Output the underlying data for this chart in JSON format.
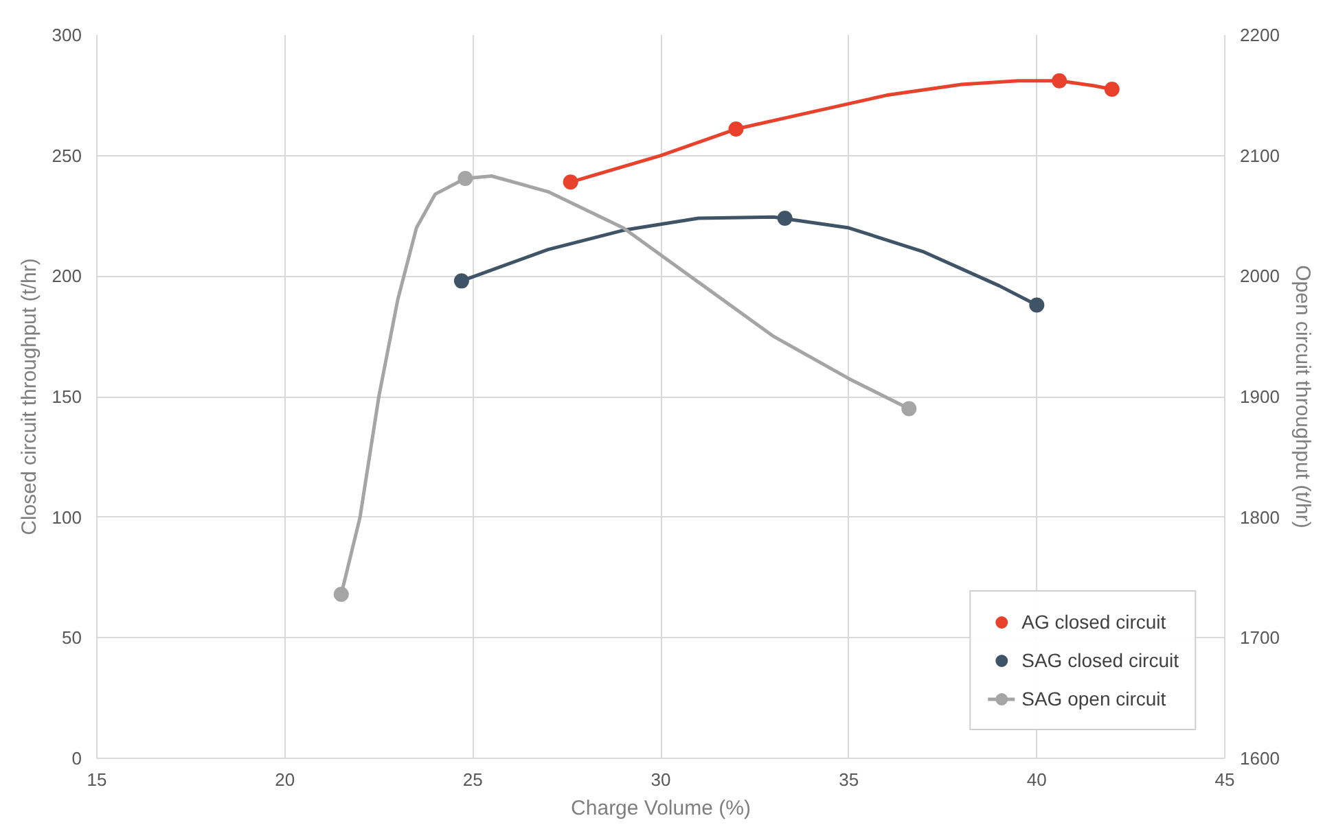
{
  "chart_data": {
    "type": "scatter",
    "xlabel": "Charge Volume (%)",
    "ylabel": "Closed circuit throughput (t/hr)",
    "y2label": "Open circuit throughput (t/hr)",
    "xlim": [
      15,
      45
    ],
    "xticks": [
      15,
      20,
      25,
      30,
      35,
      40,
      45
    ],
    "ylim": [
      0,
      300
    ],
    "yticks": [
      0,
      50,
      100,
      150,
      200,
      250,
      300
    ],
    "y2lim": [
      1600,
      2200
    ],
    "y2ticks": [
      1600,
      1700,
      1800,
      1900,
      2000,
      2100,
      2200
    ],
    "grid": true,
    "legend": "bottom right",
    "marker": "circle",
    "series": [
      {
        "type": "line",
        "color": "#e8412c",
        "marker": "none",
        "x": [
          27.6,
          30,
          32,
          34,
          36,
          38,
          39.5,
          40.6,
          41.5,
          42
        ],
        "values": [
          239,
          250,
          261,
          268,
          275,
          279.5,
          281,
          281,
          279,
          277.5
        ]
      },
      {
        "type": "line",
        "color": "#3f5467",
        "marker": "none",
        "x": [
          24.7,
          27,
          29,
          31,
          33,
          35,
          37,
          39,
          40
        ],
        "values": [
          198,
          211,
          219,
          224,
          224.5,
          220,
          210,
          196,
          188
        ]
      },
      {
        "name": "AG closed circuit",
        "color": "#e8412c",
        "x": [
          27.6,
          32,
          40.6,
          42
        ],
        "values": [
          239,
          261,
          281,
          277.5
        ]
      },
      {
        "name": "SAG closed circuit",
        "color": "#3f5467",
        "x": [
          24.7,
          33.3,
          40
        ],
        "values": [
          198,
          224,
          188
        ]
      },
      {
        "name": "SAG open circuit",
        "color": "#a5a5a5",
        "axis": "y2",
        "x": [
          21.5,
          24.8,
          36.6
        ],
        "values": [
          1736,
          2081,
          1890
        ]
      },
      {
        "type": "line",
        "color": "#a5a5a5",
        "axis": "y2",
        "marker": "none",
        "x": [
          21.5,
          22,
          22.5,
          23,
          23.5,
          24,
          24.8,
          25.5,
          27,
          29,
          31,
          33,
          35,
          36.6
        ],
        "values": [
          1736,
          1800,
          1900,
          1980,
          2040,
          2068,
          2081,
          2083,
          2070,
          2040,
          1995,
          1950,
          1915,
          1890
        ]
      }
    ]
  }
}
